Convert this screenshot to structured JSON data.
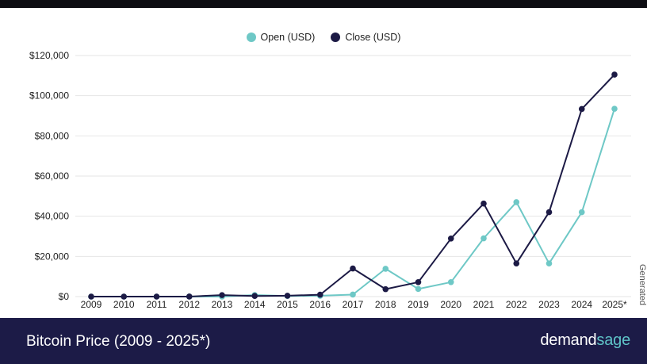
{
  "colors": {
    "open": "#6ec8c6",
    "close": "#1c1a45",
    "grid": "#e6e6e6",
    "footer_bg": "#1c1b47",
    "brand_accent": "#5fc4c8"
  },
  "footer": {
    "title": "Bitcoin Price (2009 - 2025*)",
    "brand_part1": "demand",
    "brand_part2": "sage"
  },
  "credit_text": "Generated",
  "chart_data": {
    "type": "line",
    "title": "Bitcoin Price (2009 - 2025*)",
    "xlabel": "",
    "ylabel": "",
    "categories": [
      "2009",
      "2010",
      "2011",
      "2012",
      "2013",
      "2014",
      "2015",
      "2016",
      "2017",
      "2018",
      "2019",
      "2020",
      "2021",
      "2022",
      "2023",
      "2024",
      "2025*"
    ],
    "series": [
      {
        "name": "Open (USD)",
        "values": [
          0,
          0,
          0,
          5,
          13,
          770,
          315,
          430,
          1000,
          13850,
          3800,
          7200,
          29000,
          47000,
          16500,
          42000,
          93500
        ]
      },
      {
        "name": "Close (USD)",
        "values": [
          0,
          0,
          0,
          5,
          740,
          320,
          430,
          960,
          14000,
          3700,
          7200,
          28900,
          46300,
          16500,
          42000,
          93400,
          110500
        ]
      }
    ],
    "ylim": [
      0,
      120000
    ],
    "yticks": [
      0,
      20000,
      40000,
      60000,
      80000,
      100000,
      120000
    ],
    "ytick_labels": [
      "$0",
      "$20,000",
      "$40,000",
      "$60,000",
      "$80,000",
      "$100,000",
      "$120,000"
    ],
    "grid": true,
    "legend_position": "top-center"
  }
}
